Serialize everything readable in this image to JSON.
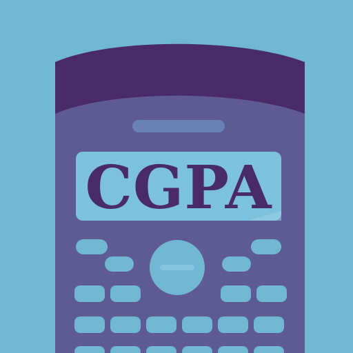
{
  "app_icon": {
    "display_text": "CGPA",
    "icon_name": "calculator-icon",
    "colors": {
      "background": "#6fb7d2",
      "body": "#5e5a93",
      "top_band": "#4a2b6a",
      "display_panel": "#7cc2dc",
      "text": "#4a2b6a",
      "keys": "#6fb7d2"
    }
  }
}
